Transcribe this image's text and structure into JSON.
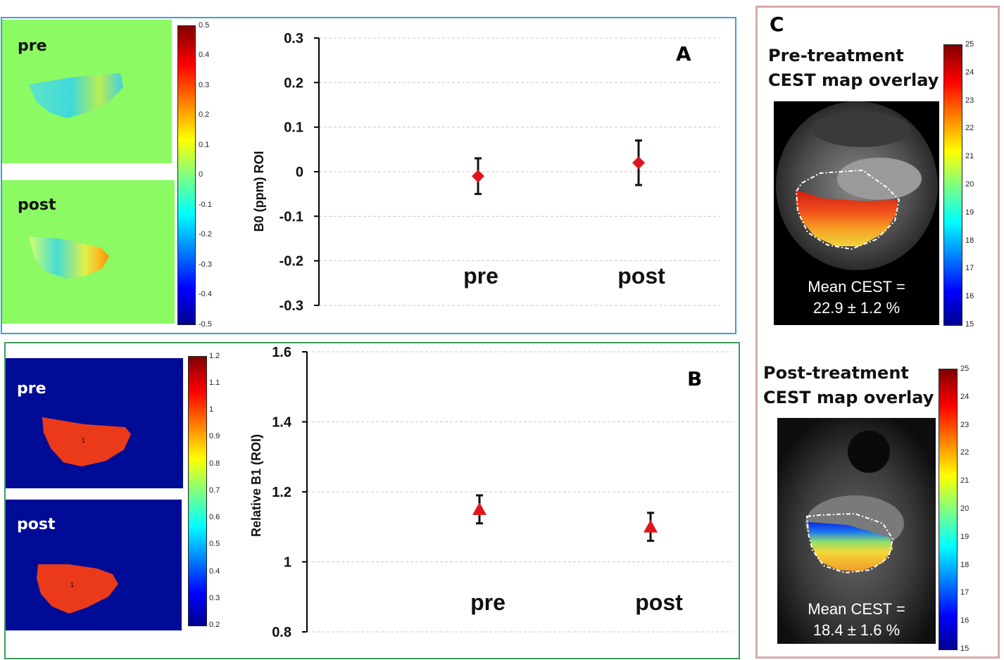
{
  "panel_a": {
    "letter": "A",
    "maps": [
      {
        "label": "pre"
      },
      {
        "label": "post"
      }
    ],
    "colorbar_ticks": [
      "0.5",
      "0.4",
      "0.3",
      "0.2",
      "0.1",
      "0",
      "-0.1",
      "-0.2",
      "-0.3",
      "-0.4",
      "-0.5"
    ]
  },
  "panel_b": {
    "letter": "B",
    "maps": [
      {
        "label": "pre"
      },
      {
        "label": "post"
      }
    ],
    "colorbar_ticks": [
      "1.2",
      "1.1",
      "1",
      "0.9",
      "0.8",
      "0.7",
      "0.6",
      "0.5",
      "0.4",
      "0.3",
      "0.2"
    ]
  },
  "panel_c": {
    "letter": "C",
    "pre": {
      "title_line1": "Pre-treatment",
      "title_line2": "CEST map overlay",
      "mean_line1": "Mean CEST =",
      "mean_line2": "22.9 ± 1.2 %"
    },
    "post": {
      "title_line1": "Post-treatment",
      "title_line2": "CEST map overlay",
      "mean_line1": "Mean CEST =",
      "mean_line2": "18.4 ± 1.6 %"
    },
    "colorbar_ticks": [
      "25",
      "24",
      "23",
      "22",
      "21",
      "20",
      "19",
      "18",
      "17",
      "16",
      "15"
    ]
  },
  "chart_data": [
    {
      "type": "scatter",
      "title": "",
      "ylabel": "B0 (ppm) ROI",
      "xlabel": "",
      "categories": [
        "pre",
        "post"
      ],
      "values": [
        -0.01,
        0.02
      ],
      "error": [
        0.04,
        0.05
      ],
      "ylim": [
        -0.3,
        0.3
      ],
      "yticks": [
        "0.3",
        "0.2",
        "0.1",
        "0",
        "-0.1",
        "-0.2",
        "-0.3"
      ],
      "yticks_values": [
        0.3,
        0.2,
        0.1,
        0,
        -0.1,
        -0.2,
        -0.3
      ],
      "marker": "diamond",
      "color": "#e0141b",
      "grid": true
    },
    {
      "type": "scatter",
      "title": "",
      "ylabel": "Relative B1 (ROI)",
      "xlabel": "",
      "categories": [
        "pre",
        "post"
      ],
      "values": [
        1.15,
        1.1
      ],
      "error": [
        0.04,
        0.04
      ],
      "ylim": [
        0.8,
        1.6
      ],
      "yticks": [
        "1.6",
        "1.4",
        "1.2",
        "1",
        "0.8"
      ],
      "yticks_values": [
        1.6,
        1.4,
        1.2,
        1.0,
        0.8
      ],
      "marker": "triangle",
      "color": "#e0141b",
      "grid": true
    }
  ]
}
